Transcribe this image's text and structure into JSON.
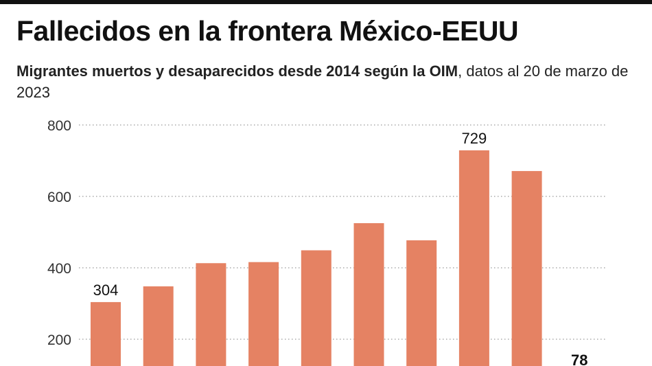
{
  "title": "Fallecidos en la frontera México-EEUU",
  "subtitle_bold": "Migrantes muertos y desaparecidos desde 2014 según la OIM",
  "subtitle_rest": ", datos al 20 de marzo de 2023",
  "chart_data": {
    "type": "bar",
    "values": [
      304,
      348,
      413,
      416,
      449,
      525,
      477,
      729,
      671,
      78
    ],
    "data_labels": {
      "0": "304",
      "7": "729",
      "9": "78"
    },
    "ylim": [
      0,
      800
    ],
    "yticks": [
      "200",
      "400",
      "600",
      "800"
    ],
    "grid": true,
    "bar_color": "#e58263",
    "xlabel": "",
    "ylabel": ""
  }
}
